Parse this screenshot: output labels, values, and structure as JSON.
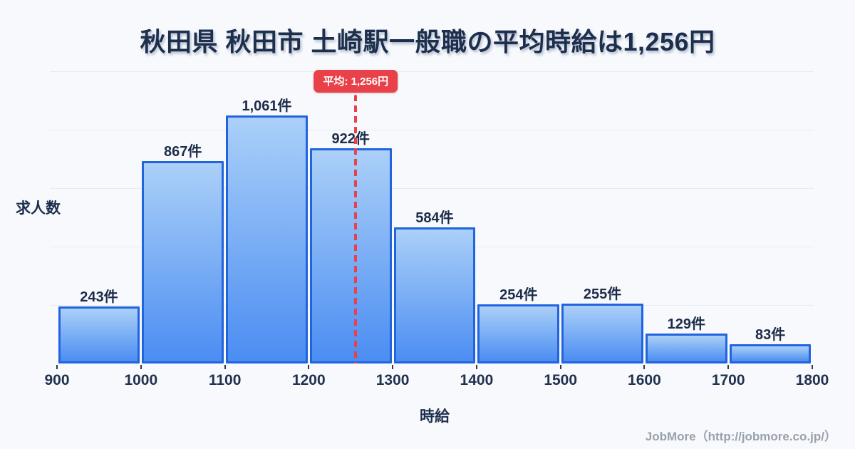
{
  "title": "秋田県 秋田市 土崎駅一般職の平均時給は1,256円",
  "footer": {
    "credit": "JobMore（http://jobmore.co.jp/）"
  },
  "chart_data": {
    "type": "bar",
    "subtype": "histogram",
    "title": "秋田県 秋田市 土崎駅一般職の平均時給は1,256円",
    "xlabel": "時給",
    "ylabel": "求人数",
    "bin_edges": [
      900,
      1000,
      1100,
      1200,
      1300,
      1400,
      1500,
      1600,
      1700,
      1800
    ],
    "values": [
      243,
      867,
      1061,
      922,
      584,
      254,
      255,
      129,
      83
    ],
    "value_labels": [
      "243件",
      "867件",
      "1,061件",
      "922件",
      "584件",
      "254件",
      "255件",
      "129件",
      "83件"
    ],
    "x_tick_labels": [
      "900",
      "1000",
      "1100",
      "1200",
      "1300",
      "1400",
      "1500",
      "1600",
      "1700",
      "1800"
    ],
    "mean": {
      "value": 1256,
      "label": "平均: 1,256円"
    },
    "xlim": [
      900,
      1800
    ],
    "ylim": [
      0,
      1250
    ],
    "gridline_values": [
      250,
      500,
      750,
      1000,
      1250
    ],
    "grid": true,
    "legend": false,
    "colors": {
      "bar_fill_top": "#abd0f8",
      "bar_fill_bottom": "#4b8df2",
      "bar_border": "#2263de",
      "mean_line": "#e8414a",
      "badge_bg": "#e8414a",
      "badge_text": "#ffffff",
      "title_text": "#1e2f4e",
      "label_text": "#1c2c49",
      "grid": "#e7ebf3",
      "background": "#f7f9fc",
      "footer_text": "#9aa1ac"
    }
  }
}
